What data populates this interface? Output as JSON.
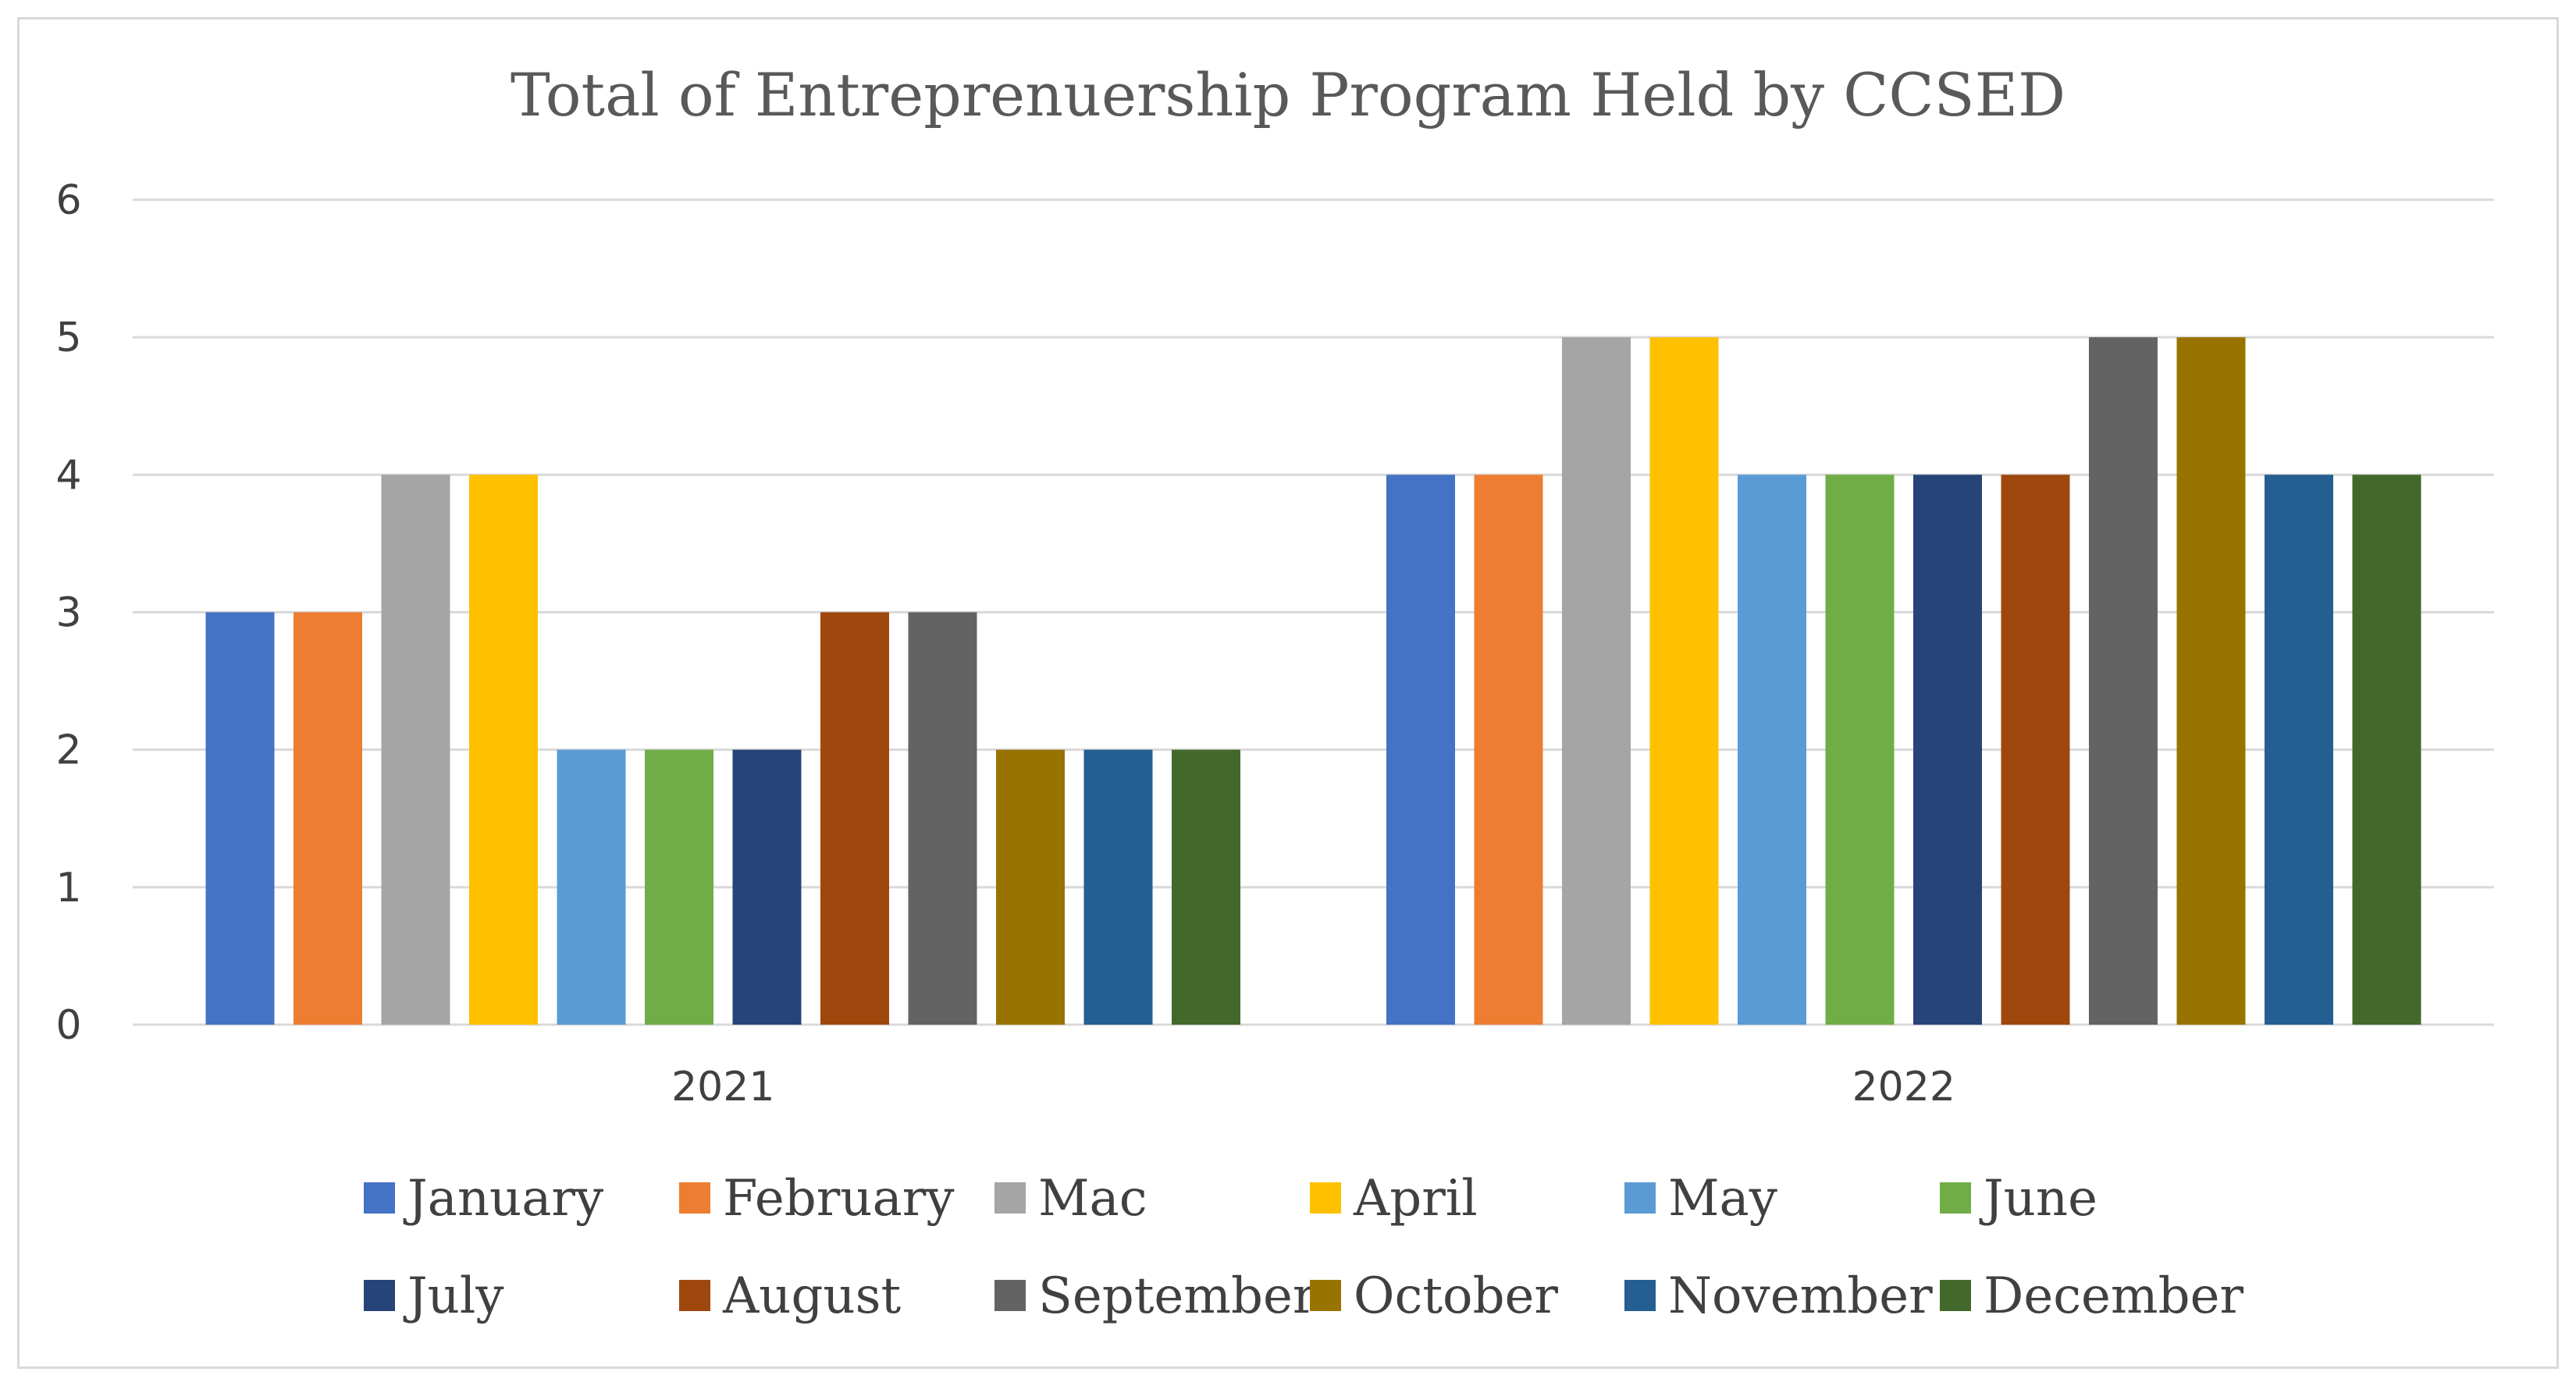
{
  "chart_data": {
    "type": "bar",
    "title": "Total of Entreprenuership Program Held by CCSED",
    "xlabel": "",
    "ylabel": "",
    "categories": [
      "2021",
      "2022"
    ],
    "ylim": [
      0,
      6
    ],
    "yticks": [
      0,
      1,
      2,
      3,
      4,
      5,
      6
    ],
    "grid": true,
    "legend_position": "bottom",
    "series": [
      {
        "name": "January",
        "color": "#4472C4",
        "values": [
          3,
          4
        ]
      },
      {
        "name": "February",
        "color": "#ED7D31",
        "values": [
          3,
          4
        ]
      },
      {
        "name": "Mac",
        "color": "#A5A5A5",
        "values": [
          4,
          5
        ]
      },
      {
        "name": "April",
        "color": "#FFC000",
        "values": [
          4,
          5
        ]
      },
      {
        "name": "May",
        "color": "#5B9BD5",
        "values": [
          2,
          4
        ]
      },
      {
        "name": "June",
        "color": "#70AD47",
        "values": [
          2,
          4
        ]
      },
      {
        "name": "July",
        "color": "#264478",
        "values": [
          2,
          4
        ]
      },
      {
        "name": "August",
        "color": "#9E480E",
        "values": [
          3,
          4
        ]
      },
      {
        "name": "September",
        "color": "#636363",
        "values": [
          3,
          5
        ]
      },
      {
        "name": "October",
        "color": "#997300",
        "values": [
          2,
          5
        ]
      },
      {
        "name": "November",
        "color": "#255E91",
        "values": [
          2,
          4
        ]
      },
      {
        "name": "December",
        "color": "#43682B",
        "values": [
          2,
          4
        ]
      }
    ]
  }
}
